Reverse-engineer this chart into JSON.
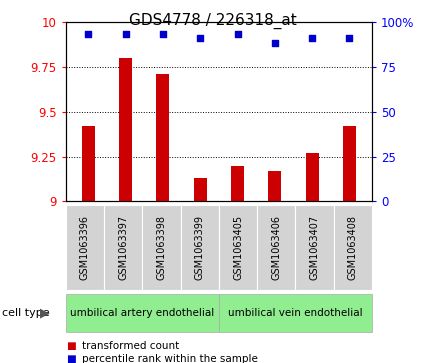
{
  "title": "GDS4778 / 226318_at",
  "samples": [
    "GSM1063396",
    "GSM1063397",
    "GSM1063398",
    "GSM1063399",
    "GSM1063405",
    "GSM1063406",
    "GSM1063407",
    "GSM1063408"
  ],
  "bar_values": [
    9.42,
    9.8,
    9.71,
    9.13,
    9.2,
    9.17,
    9.27,
    9.42
  ],
  "percentile_values": [
    93,
    93,
    93,
    91,
    93,
    88,
    91,
    91
  ],
  "ylim": [
    9.0,
    10.0
  ],
  "yticks": [
    9.0,
    9.25,
    9.5,
    9.75,
    10.0
  ],
  "ytick_labels": [
    "9",
    "9.25",
    "9.5",
    "9.75",
    "10"
  ],
  "right_yticks": [
    0,
    25,
    50,
    75,
    100
  ],
  "right_ytick_labels": [
    "0",
    "25",
    "50",
    "75",
    "100%"
  ],
  "bar_color": "#cc0000",
  "dot_color": "#0000cc",
  "cell_type_groups": [
    {
      "label": "umbilical artery endothelial",
      "start": 0,
      "end": 3
    },
    {
      "label": "umbilical vein endothelial",
      "start": 4,
      "end": 7
    }
  ],
  "cell_type_label": "cell type",
  "legend_bar_label": "transformed count",
  "legend_dot_label": "percentile rank within the sample",
  "title_fontsize": 11,
  "tick_fontsize": 8.5,
  "label_fontsize": 7,
  "group_fontsize": 7.5
}
